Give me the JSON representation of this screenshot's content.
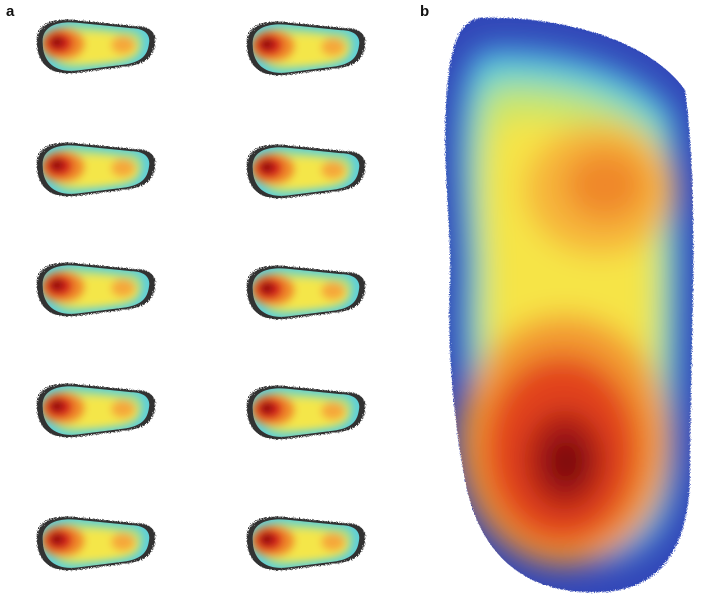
{
  "panels": {
    "a": {
      "label": "a"
    },
    "b": {
      "label": "b"
    }
  }
}
